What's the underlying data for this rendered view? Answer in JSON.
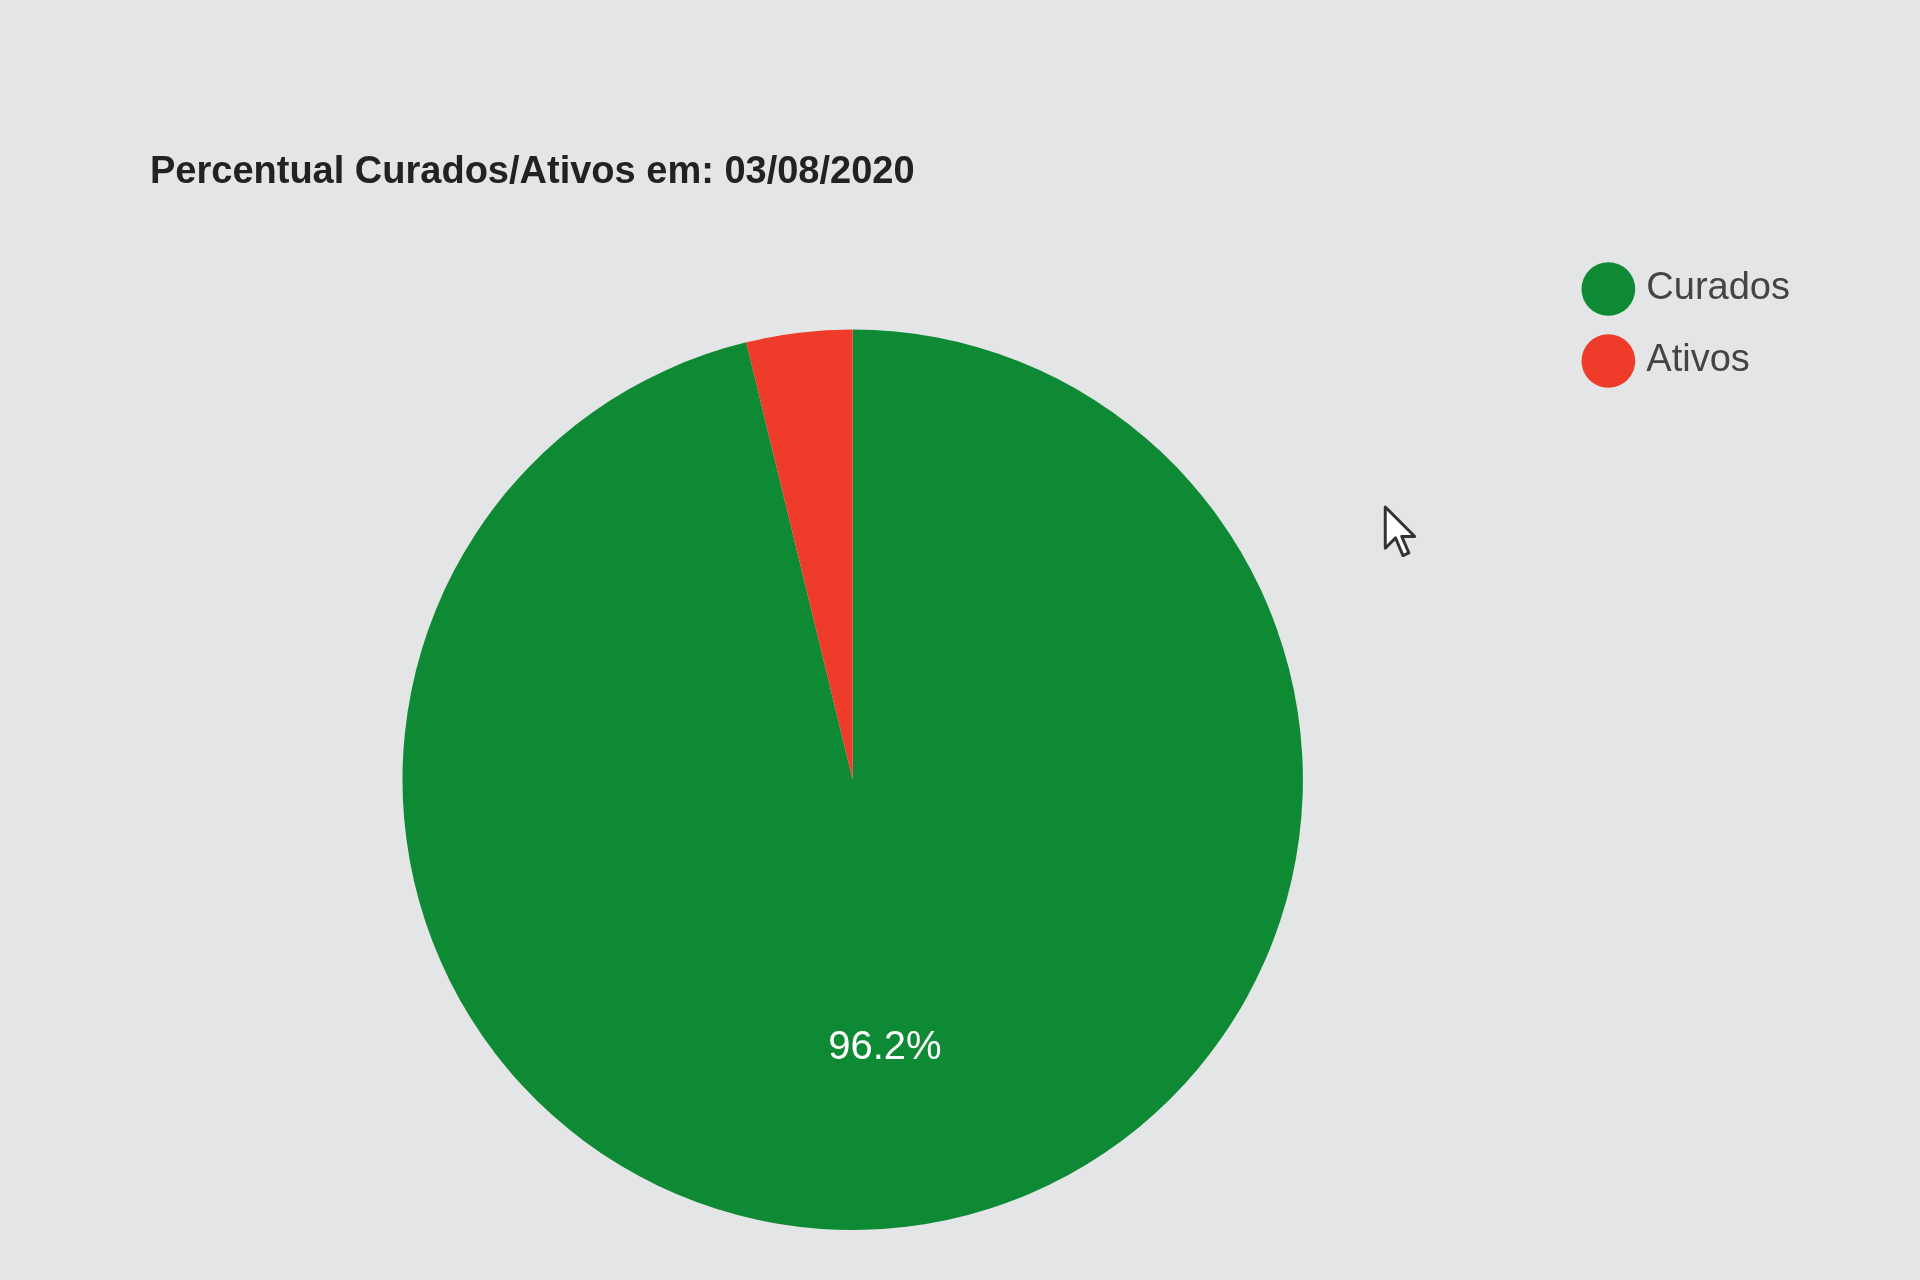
{
  "chart_data": {
    "type": "pie",
    "title": "Percentual Curados/Ativos em: 03/08/2020",
    "categories": [
      "Curados",
      "Ativos"
    ],
    "values": [
      96.2,
      3.8
    ],
    "colors": [
      "#0e8a35",
      "#ef3b2a"
    ],
    "value_labels": [
      "96.2%",
      null
    ],
    "legend": "top right"
  }
}
